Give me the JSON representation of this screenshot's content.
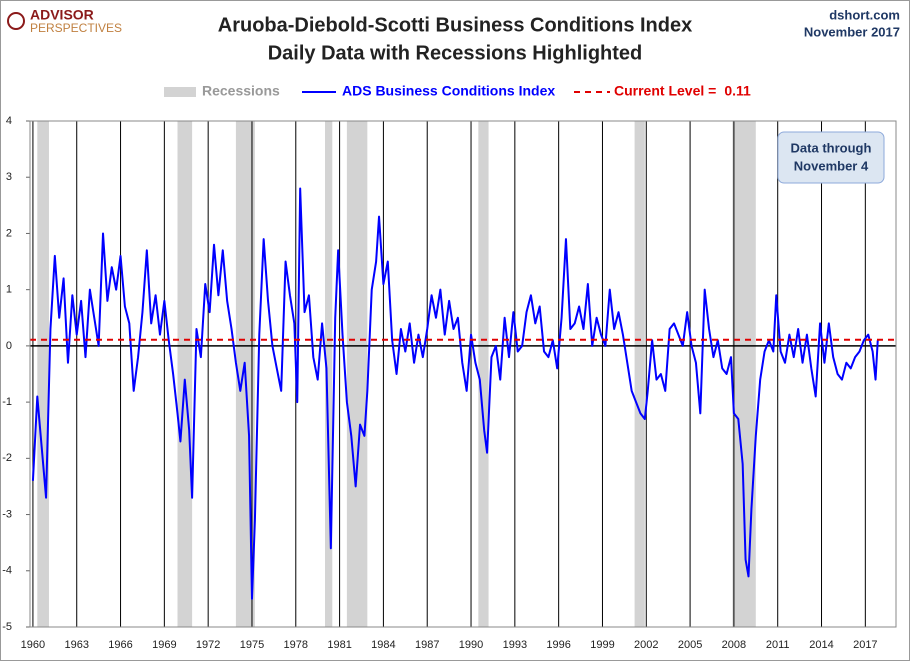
{
  "chart_data": {
    "type": "line",
    "title": "Aruoba-Diebold-Scotti Business Conditions Index",
    "subtitle": "Daily Data with Recessions Highlighted",
    "logo": [
      "ADVISOR",
      "PERSPECTIVES"
    ],
    "source": "dshort.com",
    "date": "November 2017",
    "annotation": [
      "Data through",
      "November 4"
    ],
    "recessions_name": "Recessions",
    "recessions_color": "#d3d3d3",
    "recessions": [
      [
        1960.3,
        1961.1
      ],
      [
        1969.9,
        1970.9
      ],
      [
        1973.9,
        1975.2
      ],
      [
        1980.0,
        1980.5
      ],
      [
        1981.5,
        1982.9
      ],
      [
        1990.5,
        1991.2
      ],
      [
        2001.2,
        2001.9
      ],
      [
        2007.9,
        2009.5
      ]
    ],
    "reference_line": {
      "name": "Current Level =",
      "value": 0.11,
      "color": "#e00000"
    },
    "xlim": [
      1959.8,
      2019.1
    ],
    "xticks": [
      1960,
      1963,
      1966,
      1969,
      1972,
      1975,
      1978,
      1981,
      1984,
      1987,
      1990,
      1993,
      1996,
      1999,
      2002,
      2005,
      2008,
      2011,
      2014,
      2017
    ],
    "ylim": [
      -5,
      4
    ],
    "yticks": [
      4,
      3,
      2,
      1,
      0,
      -1,
      -2,
      -3,
      -4,
      -5
    ],
    "x": [
      1960.0,
      1960.3,
      1960.6,
      1960.9,
      1961.2,
      1961.5,
      1961.8,
      1962.1,
      1962.4,
      1962.7,
      1963.0,
      1963.3,
      1963.6,
      1963.9,
      1964.2,
      1964.5,
      1964.8,
      1965.1,
      1965.4,
      1965.7,
      1966.0,
      1966.3,
      1966.6,
      1966.9,
      1967.2,
      1967.5,
      1967.8,
      1968.1,
      1968.4,
      1968.7,
      1969.0,
      1969.3,
      1969.6,
      1969.9,
      1970.1,
      1970.4,
      1970.7,
      1970.9,
      1971.2,
      1971.5,
      1971.8,
      1972.1,
      1972.4,
      1972.7,
      1973.0,
      1973.3,
      1973.6,
      1973.9,
      1974.2,
      1974.5,
      1974.8,
      1975.0,
      1975.2,
      1975.5,
      1975.8,
      1976.1,
      1976.4,
      1976.7,
      1977.0,
      1977.3,
      1977.6,
      1977.9,
      1978.1,
      1978.3,
      1978.6,
      1978.9,
      1979.2,
      1979.5,
      1979.8,
      1980.1,
      1980.4,
      1980.7,
      1980.9,
      1981.2,
      1981.5,
      1981.8,
      1982.1,
      1982.4,
      1982.7,
      1982.9,
      1983.2,
      1983.5,
      1983.7,
      1984.0,
      1984.3,
      1984.6,
      1984.9,
      1985.2,
      1985.5,
      1985.8,
      1986.1,
      1986.4,
      1986.7,
      1987.0,
      1987.3,
      1987.6,
      1987.9,
      1988.2,
      1988.5,
      1988.8,
      1989.1,
      1989.4,
      1989.7,
      1990.0,
      1990.3,
      1990.6,
      1990.9,
      1991.1,
      1991.4,
      1991.7,
      1992.0,
      1992.3,
      1992.6,
      1992.9,
      1993.2,
      1993.5,
      1993.8,
      1994.1,
      1994.4,
      1994.7,
      1995.0,
      1995.3,
      1995.6,
      1995.9,
      1996.2,
      1996.5,
      1996.8,
      1997.1,
      1997.4,
      1997.7,
      1998.0,
      1998.3,
      1998.6,
      1998.9,
      1999.2,
      1999.5,
      1999.8,
      2000.1,
      2000.4,
      2000.7,
      2001.0,
      2001.3,
      2001.6,
      2001.9,
      2002.1,
      2002.4,
      2002.7,
      2003.0,
      2003.3,
      2003.6,
      2003.9,
      2004.2,
      2004.5,
      2004.8,
      2005.1,
      2005.4,
      2005.7,
      2006.0,
      2006.3,
      2006.6,
      2006.9,
      2007.2,
      2007.5,
      2007.8,
      2008.0,
      2008.3,
      2008.6,
      2008.8,
      2009.0,
      2009.2,
      2009.5,
      2009.8,
      2010.1,
      2010.4,
      2010.7,
      2010.9,
      2011.2,
      2011.5,
      2011.8,
      2012.1,
      2012.4,
      2012.7,
      2013.0,
      2013.3,
      2013.6,
      2013.9,
      2014.2,
      2014.5,
      2014.8,
      2015.1,
      2015.4,
      2015.7,
      2016.0,
      2016.3,
      2016.6,
      2016.9,
      2017.2,
      2017.5,
      2017.7,
      2017.85
    ],
    "series": [
      {
        "name": "ADS Business Conditions Index",
        "color": "#0000ff",
        "values": [
          -2.4,
          -0.9,
          -1.8,
          -2.7,
          0.3,
          1.6,
          0.5,
          1.2,
          -0.3,
          0.9,
          0.2,
          0.8,
          -0.2,
          1.0,
          0.5,
          0.0,
          2.0,
          0.8,
          1.4,
          1.0,
          1.6,
          0.7,
          0.4,
          -0.8,
          -0.2,
          0.6,
          1.7,
          0.4,
          0.9,
          0.2,
          0.8,
          0.1,
          -0.5,
          -1.2,
          -1.7,
          -0.6,
          -1.5,
          -2.7,
          0.3,
          -0.2,
          1.1,
          0.6,
          1.8,
          0.9,
          1.7,
          0.8,
          0.3,
          -0.3,
          -0.8,
          -0.3,
          -1.6,
          -4.5,
          -3.1,
          0.2,
          1.9,
          0.8,
          0.0,
          -0.4,
          -0.8,
          1.5,
          0.9,
          0.4,
          -1.0,
          2.8,
          0.6,
          0.9,
          -0.2,
          -0.6,
          0.4,
          -0.4,
          -3.6,
          0.5,
          1.7,
          0.2,
          -1.0,
          -1.6,
          -2.5,
          -1.4,
          -1.6,
          -0.8,
          1.0,
          1.5,
          2.3,
          1.1,
          1.5,
          0.1,
          -0.5,
          0.3,
          -0.1,
          0.4,
          -0.3,
          0.2,
          -0.2,
          0.3,
          0.9,
          0.5,
          1.0,
          0.2,
          0.8,
          0.3,
          0.5,
          -0.3,
          -0.8,
          0.2,
          -0.3,
          -0.6,
          -1.5,
          -1.9,
          -0.2,
          0.0,
          -0.6,
          0.5,
          -0.2,
          0.6,
          -0.1,
          0.0,
          0.6,
          0.9,
          0.4,
          0.7,
          -0.1,
          -0.2,
          0.1,
          -0.4,
          0.5,
          1.9,
          0.3,
          0.4,
          0.7,
          0.3,
          1.1,
          0.0,
          0.5,
          0.2,
          0.0,
          1.0,
          0.3,
          0.6,
          0.2,
          -0.3,
          -0.8,
          -1.0,
          -1.2,
          -1.3,
          -0.8,
          0.1,
          -0.6,
          -0.5,
          -0.8,
          0.3,
          0.4,
          0.2,
          0.0,
          0.6,
          0.0,
          -0.3,
          -1.2,
          1.0,
          0.3,
          -0.2,
          0.1,
          -0.4,
          -0.5,
          -0.2,
          -1.2,
          -1.3,
          -2.1,
          -3.8,
          -4.1,
          -2.9,
          -1.6,
          -0.6,
          -0.1,
          0.1,
          -0.1,
          0.9,
          -0.1,
          -0.3,
          0.2,
          -0.2,
          0.3,
          -0.3,
          0.2,
          -0.4,
          -0.9,
          0.4,
          -0.3,
          0.4,
          -0.2,
          -0.5,
          -0.6,
          -0.3,
          -0.4,
          -0.2,
          -0.1,
          0.1,
          0.2,
          -0.1,
          -0.6,
          0.1
        ]
      }
    ]
  }
}
